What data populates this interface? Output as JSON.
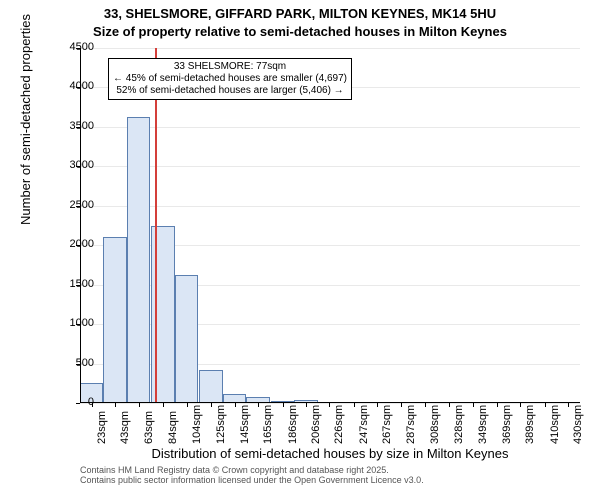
{
  "chart": {
    "type": "histogram",
    "title_line1": "33, SHELSMORE, GIFFARD PARK, MILTON KEYNES, MK14 5HU",
    "title_line2": "Size of property relative to semi-detached houses in Milton Keynes",
    "title_fontsize": 13,
    "xlabel": "Distribution of semi-detached houses by size in Milton Keynes",
    "ylabel": "Number of semi-detached properties",
    "axis_label_fontsize": 13,
    "tick_fontsize": 11,
    "background_color": "#ffffff",
    "grid_color": "#e9e9e9",
    "axis_color": "#000000",
    "bar_fill_color": "#dbe6f5",
    "bar_border_color": "#5b7fb0",
    "reference_line_color": "#d43f3a",
    "reference_value": 77,
    "annotation_lines": [
      "33 SHELSMORE: 77sqm",
      "← 45% of semi-detached houses are smaller (4,697)",
      "52% of semi-detached houses are larger (5,406) →"
    ],
    "annotation_fontsize": 10,
    "yticks": [
      0,
      500,
      1000,
      1500,
      2000,
      2500,
      3000,
      3500,
      4000,
      4500
    ],
    "ymax": 4500,
    "xtick_labels": [
      "23sqm",
      "43sqm",
      "63sqm",
      "84sqm",
      "104sqm",
      "125sqm",
      "145sqm",
      "165sqm",
      "186sqm",
      "206sqm",
      "226sqm",
      "247sqm",
      "267sqm",
      "287sqm",
      "308sqm",
      "328sqm",
      "349sqm",
      "369sqm",
      "389sqm",
      "410sqm",
      "430sqm"
    ],
    "bars": [
      {
        "x": 23,
        "count": 250
      },
      {
        "x": 43,
        "count": 2100
      },
      {
        "x": 63,
        "count": 3620
      },
      {
        "x": 84,
        "count": 2250
      },
      {
        "x": 104,
        "count": 1620
      },
      {
        "x": 125,
        "count": 420
      },
      {
        "x": 145,
        "count": 120
      },
      {
        "x": 165,
        "count": 70
      },
      {
        "x": 186,
        "count": 30
      },
      {
        "x": 206,
        "count": 40
      },
      {
        "x": 226,
        "count": 0
      },
      {
        "x": 247,
        "count": 0
      },
      {
        "x": 267,
        "count": 0
      },
      {
        "x": 287,
        "count": 0
      },
      {
        "x": 308,
        "count": 0
      },
      {
        "x": 328,
        "count": 0
      },
      {
        "x": 349,
        "count": 0
      },
      {
        "x": 369,
        "count": 0
      },
      {
        "x": 389,
        "count": 0
      },
      {
        "x": 410,
        "count": 0
      },
      {
        "x": 430,
        "count": 0
      }
    ],
    "x_domain_min": 13,
    "x_domain_max": 440,
    "bar_width_units": 20
  },
  "footer": {
    "line1": "Contains HM Land Registry data © Crown copyright and database right 2025.",
    "line2": "Contains public sector information licensed under the Open Government Licence v3.0.",
    "fontsize": 9,
    "color": "#555555"
  }
}
